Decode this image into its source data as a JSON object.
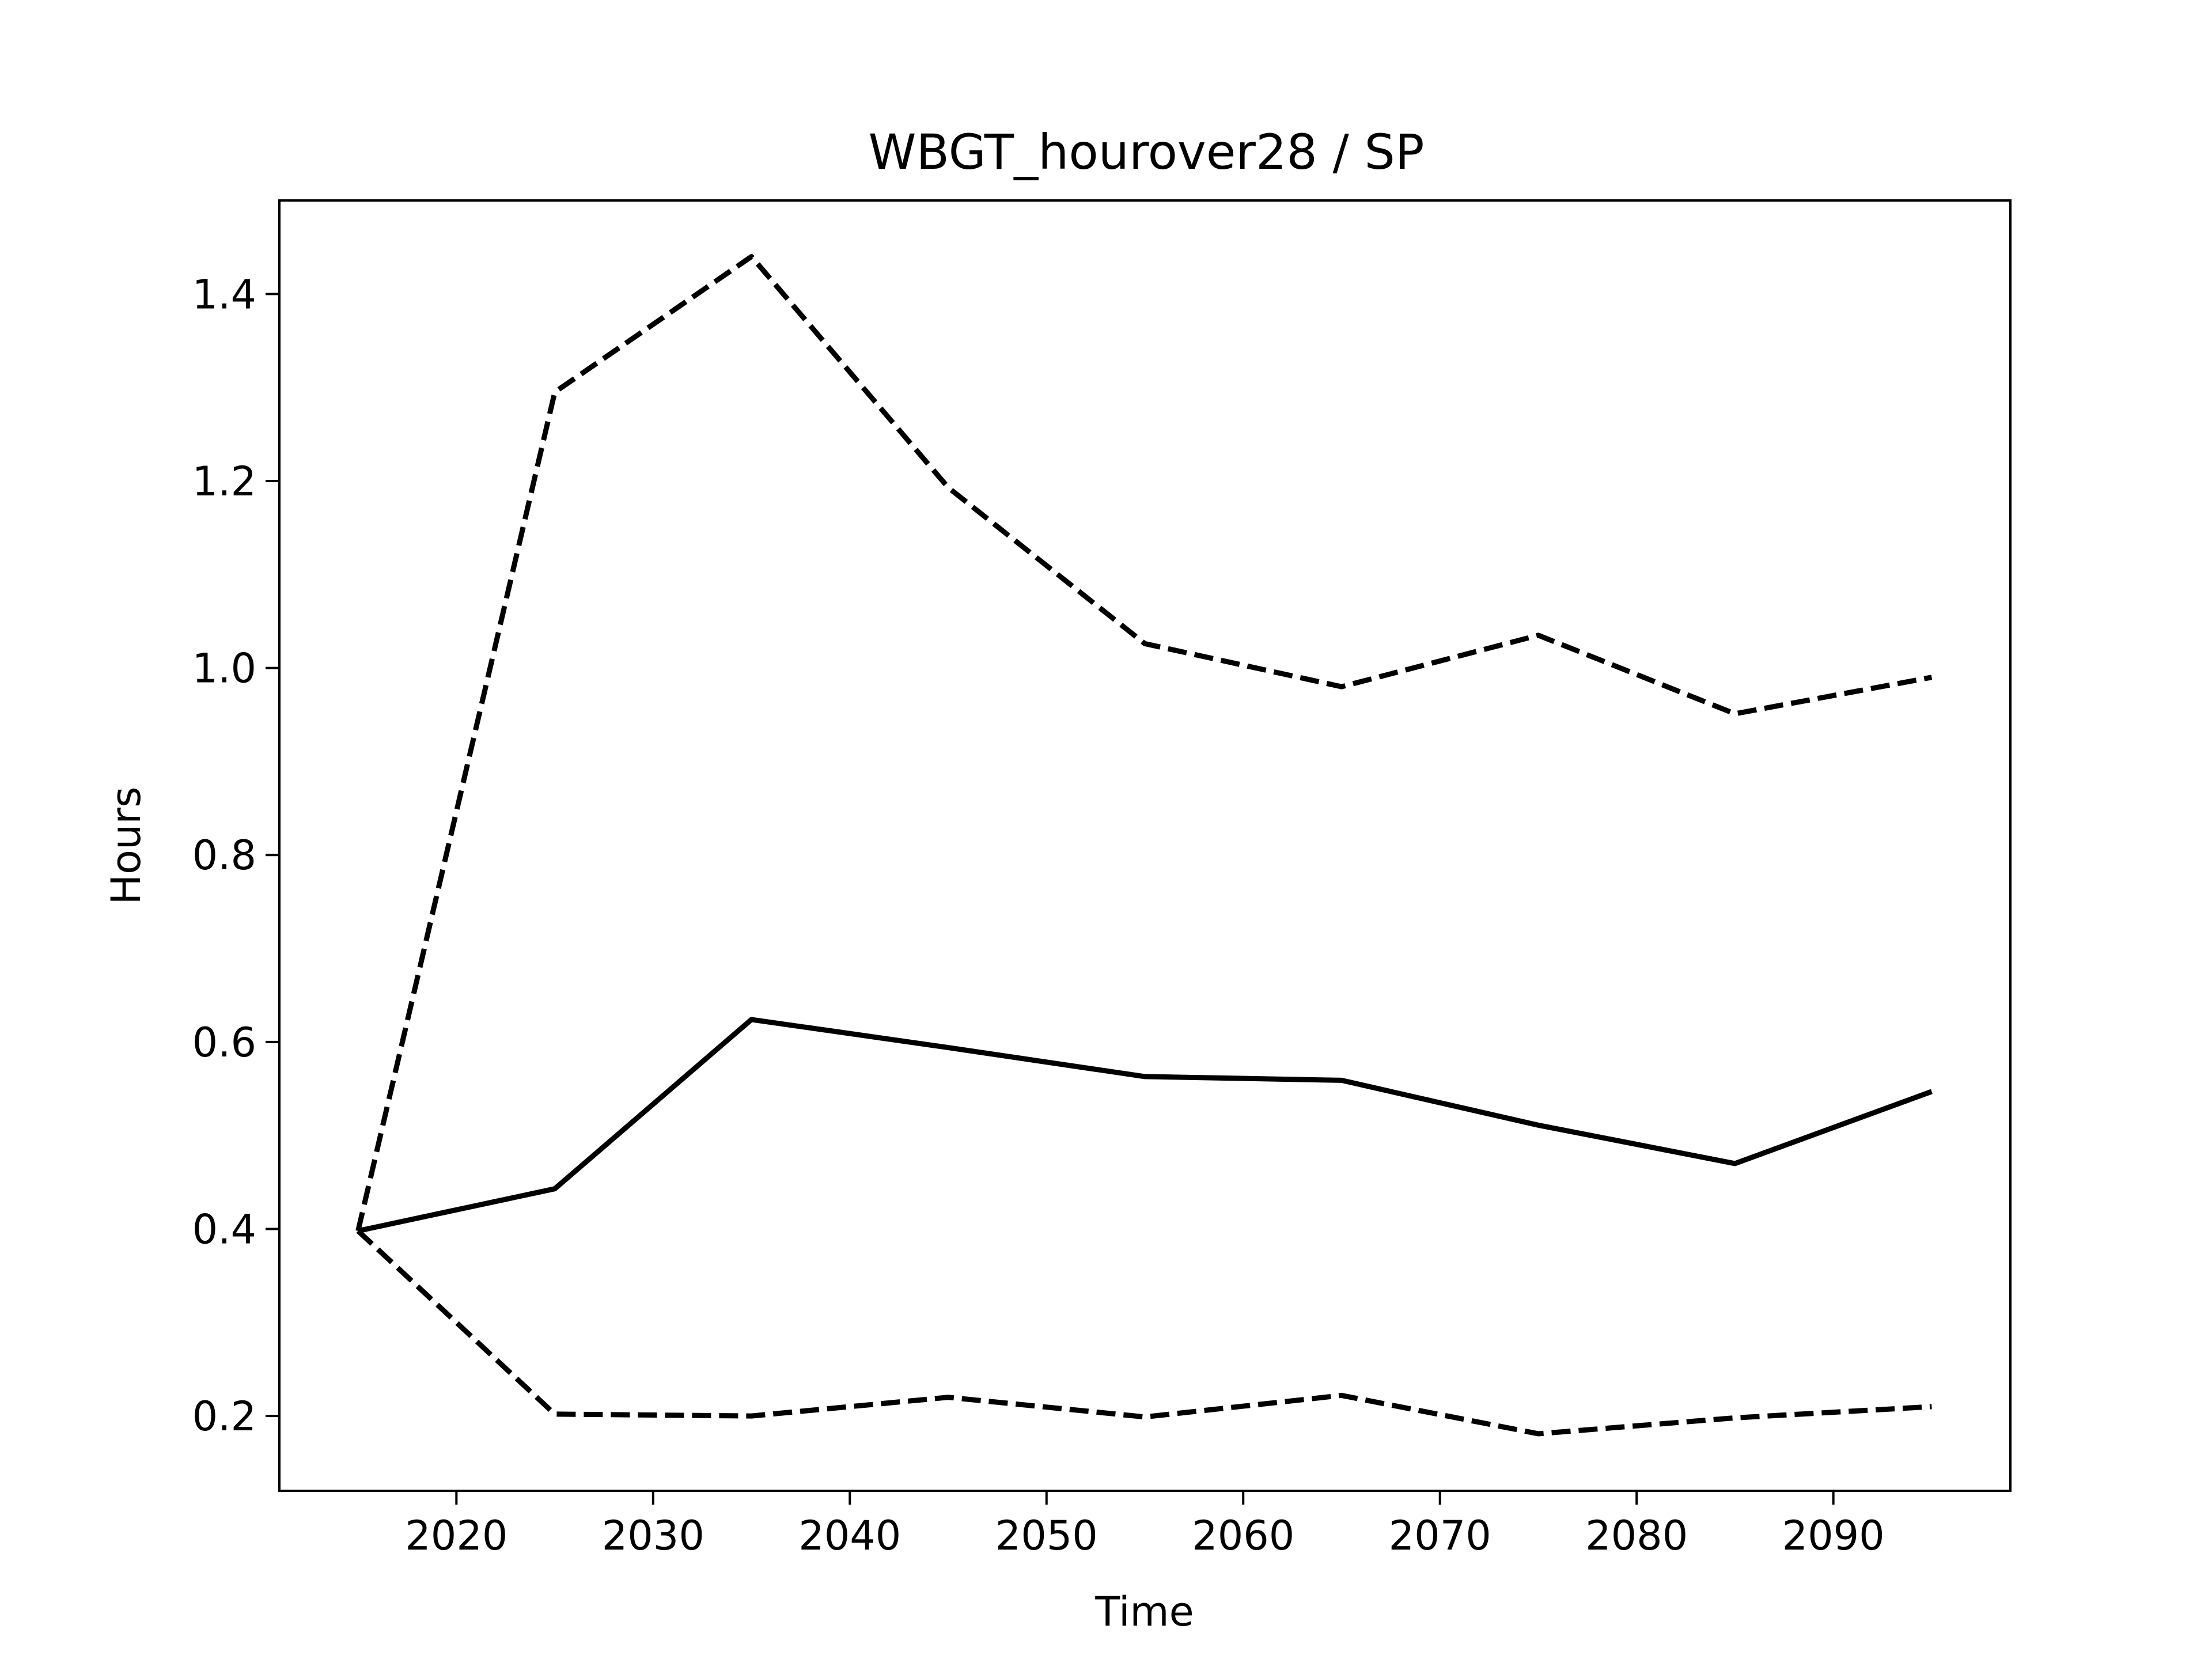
{
  "chart_data": {
    "type": "line",
    "title": "WBGT_hourover28 / SP",
    "xlabel": "Time",
    "ylabel": "Hours",
    "xlim": [
      2011,
      2099
    ],
    "ylim": [
      0.12,
      1.5
    ],
    "grid": false,
    "x_ticks": [
      2020,
      2030,
      2040,
      2050,
      2060,
      2070,
      2080,
      2090
    ],
    "y_ticks": [
      0.2,
      0.4,
      0.6,
      0.8,
      1.0,
      1.2,
      1.4
    ],
    "x": [
      2015,
      2025,
      2035,
      2045,
      2055,
      2065,
      2075,
      2085,
      2095
    ],
    "series": [
      {
        "style": "solid",
        "color": "#000000",
        "values": [
          0.398,
          0.443,
          0.624,
          0.594,
          0.563,
          0.559,
          0.511,
          0.47,
          0.547
        ]
      },
      {
        "style": "dashed",
        "color": "#000000",
        "values": [
          0.398,
          1.295,
          1.44,
          1.193,
          1.026,
          0.98,
          1.035,
          0.951,
          0.99
        ]
      },
      {
        "style": "dashed",
        "color": "#000000",
        "values": [
          0.398,
          0.202,
          0.2,
          0.22,
          0.199,
          0.222,
          0.181,
          0.198,
          0.21
        ]
      }
    ]
  }
}
